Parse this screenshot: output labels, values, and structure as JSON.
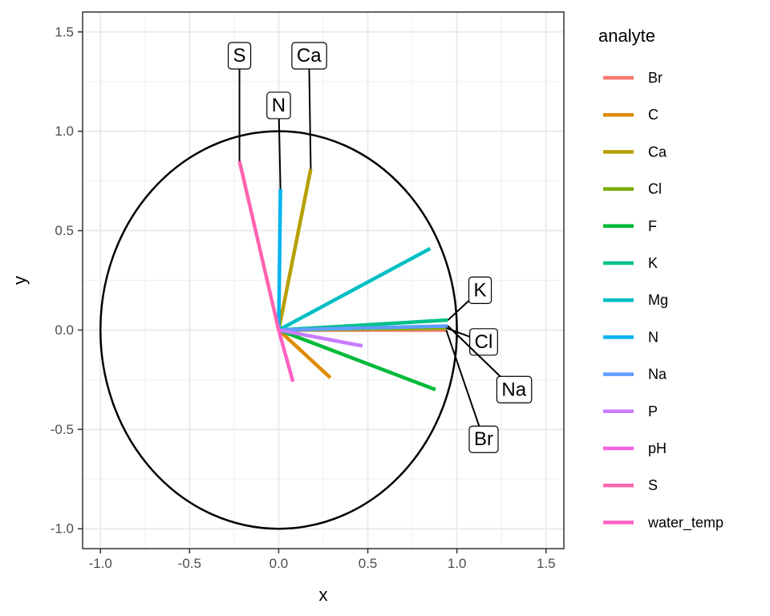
{
  "chart_data": {
    "type": "line",
    "xlabel": "x",
    "ylabel": "y",
    "xlim": [
      -1.1,
      1.6
    ],
    "ylim": [
      -1.1,
      1.6
    ],
    "x_ticks": [
      -1.0,
      -0.5,
      0.0,
      0.5,
      1.0,
      1.5
    ],
    "y_ticks": [
      -1.0,
      -0.5,
      0.0,
      0.5,
      1.0,
      1.5
    ],
    "x_tick_labels": [
      "-1.0",
      "-0.5",
      "0.0",
      "0.5",
      "1.0",
      "1.5"
    ],
    "y_tick_labels": [
      "-1.0",
      "-0.5",
      "0.0",
      "0.5",
      "1.0",
      "1.5"
    ],
    "grid": true,
    "unit_circle": true,
    "legend_title": "analyte",
    "legend_position": "right",
    "series": [
      {
        "name": "Br",
        "color": "#F8766D",
        "x": [
          0,
          0.94
        ],
        "y": [
          0,
          0.0
        ]
      },
      {
        "name": "C",
        "color": "#DE8C00",
        "x": [
          0,
          0.29
        ],
        "y": [
          0,
          -0.24
        ]
      },
      {
        "name": "Ca",
        "color": "#B79F00",
        "x": [
          0,
          0.18
        ],
        "y": [
          0,
          0.81
        ]
      },
      {
        "name": "Cl",
        "color": "#7CAE00",
        "x": [
          0,
          0.94
        ],
        "y": [
          0,
          0.01
        ]
      },
      {
        "name": "F",
        "color": "#00BA38",
        "x": [
          0,
          0.88
        ],
        "y": [
          0,
          -0.3
        ]
      },
      {
        "name": "K",
        "color": "#00C08B",
        "x": [
          0,
          0.95
        ],
        "y": [
          0,
          0.05
        ]
      },
      {
        "name": "Mg",
        "color": "#00BFC4",
        "x": [
          0,
          0.85
        ],
        "y": [
          0,
          0.41
        ]
      },
      {
        "name": "N",
        "color": "#00B4F0",
        "x": [
          0,
          0.01
        ],
        "y": [
          0,
          0.71
        ]
      },
      {
        "name": "Na",
        "color": "#619CFF",
        "x": [
          0,
          0.95
        ],
        "y": [
          0,
          0.02
        ]
      },
      {
        "name": "P",
        "color": "#C77CFF",
        "x": [
          0,
          0.47
        ],
        "y": [
          0,
          -0.08
        ]
      },
      {
        "name": "pH",
        "color": "#F564E3",
        "x": [
          0,
          0.0
        ],
        "y": [
          0,
          0.0
        ]
      },
      {
        "name": "S",
        "color": "#FF64B0",
        "x": [
          0,
          -0.22
        ],
        "y": [
          0,
          0.85
        ]
      },
      {
        "name": "water_temp",
        "color": "#FF61C3",
        "x": [
          0,
          0.08
        ],
        "y": [
          0,
          -0.26
        ]
      }
    ],
    "annotations": [
      {
        "text": "S",
        "x": -0.22,
        "y": 1.38,
        "target_x": -0.22,
        "target_y": 0.85
      },
      {
        "text": "Ca",
        "x": 0.17,
        "y": 1.38,
        "target_x": 0.18,
        "target_y": 0.81
      },
      {
        "text": "N",
        "x": 0.0,
        "y": 1.13,
        "target_x": 0.01,
        "target_y": 0.71
      },
      {
        "text": "K",
        "x": 1.13,
        "y": 0.2,
        "target_x": 0.95,
        "target_y": 0.05
      },
      {
        "text": "Cl",
        "x": 1.15,
        "y": -0.06,
        "target_x": 0.94,
        "target_y": 0.01
      },
      {
        "text": "Na",
        "x": 1.32,
        "y": -0.3,
        "target_x": 0.95,
        "target_y": 0.02
      },
      {
        "text": "Br",
        "x": 1.15,
        "y": -0.55,
        "target_x": 0.94,
        "target_y": 0.0
      }
    ]
  }
}
